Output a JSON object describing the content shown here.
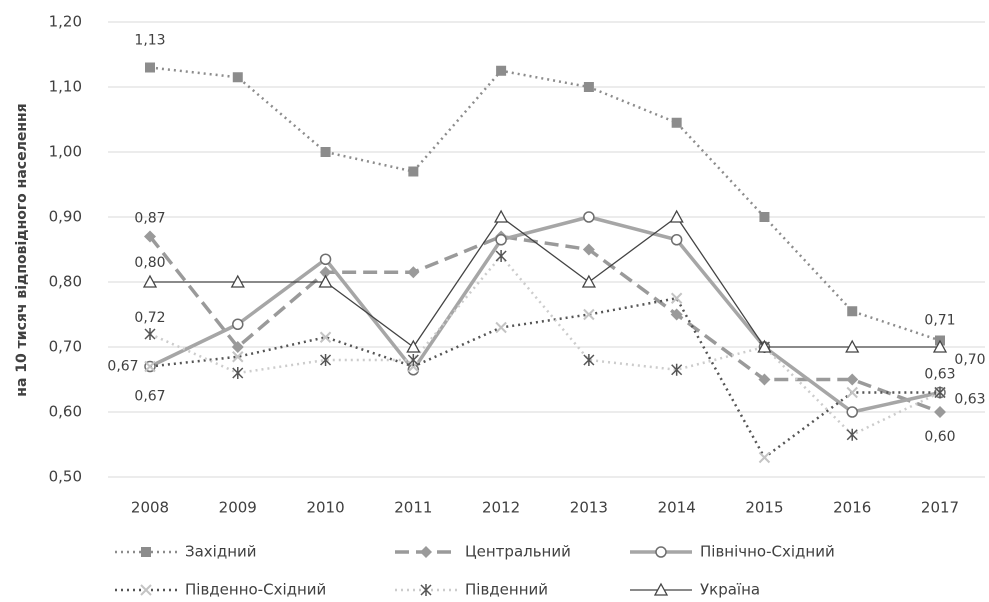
{
  "chart_data": {
    "type": "line",
    "y_label": "на 10 тисяч відповідного населення",
    "categories": [
      "2008",
      "2009",
      "2010",
      "2011",
      "2012",
      "2013",
      "2014",
      "2015",
      "2016",
      "2017"
    ],
    "ylim": [
      0.5,
      1.2
    ],
    "yticks": [
      {
        "value": 0.5,
        "label": "0,50"
      },
      {
        "value": 0.6,
        "label": "0,60"
      },
      {
        "value": 0.7,
        "label": "0,70"
      },
      {
        "value": 0.8,
        "label": "0,80"
      },
      {
        "value": 0.9,
        "label": "0,90"
      },
      {
        "value": 1.0,
        "label": "1,00"
      },
      {
        "value": 1.1,
        "label": "1,10"
      },
      {
        "value": 1.2,
        "label": "1,20"
      }
    ],
    "grid": true,
    "legend": "bottom",
    "series": [
      {
        "name": "Західний",
        "color": "#8c8c8c",
        "marker_color": "#8c8c8c",
        "line_style": "dotted",
        "marker": "square",
        "values": [
          1.13,
          1.115,
          1.0,
          0.97,
          1.125,
          1.1,
          1.045,
          0.9,
          0.755,
          0.71
        ],
        "value_labels": [
          "1,13",
          null,
          null,
          null,
          null,
          null,
          null,
          null,
          null,
          "0,71"
        ]
      },
      {
        "name": "Центральний",
        "color": "#9a9a9a",
        "marker_color": "#9a9a9a",
        "line_style": "dashed",
        "marker": "diamond",
        "values": [
          0.87,
          0.7,
          0.815,
          0.815,
          0.87,
          0.85,
          0.75,
          0.65,
          0.65,
          0.6
        ],
        "value_labels": [
          "0,87",
          null,
          null,
          null,
          null,
          null,
          null,
          null,
          null,
          "0,60"
        ]
      },
      {
        "name": "Північно-Східний",
        "color": "#a6a6a6",
        "marker_color": "#6e6e6e",
        "line_style": "solid",
        "marker": "circle",
        "values": [
          0.67,
          0.735,
          0.835,
          0.665,
          0.865,
          0.9,
          0.865,
          0.7,
          0.6,
          0.63
        ],
        "value_labels": [
          "0,67",
          null,
          null,
          null,
          null,
          null,
          null,
          null,
          null,
          "0,63"
        ]
      },
      {
        "name": "Південно-Східний",
        "color": "#555555",
        "marker_color": "#c4c4c4",
        "line_style": "dotted",
        "marker": "x",
        "values": [
          0.67,
          0.685,
          0.715,
          0.67,
          0.73,
          0.75,
          0.775,
          0.53,
          0.63,
          0.63
        ],
        "value_labels": [
          "0,67",
          null,
          null,
          null,
          null,
          null,
          null,
          null,
          null,
          null
        ]
      },
      {
        "name": "Південний",
        "color": "#cccccc",
        "marker_color": "#555555",
        "line_style": "dotted",
        "marker": "asterisk",
        "values": [
          0.72,
          0.66,
          0.68,
          0.68,
          0.84,
          0.68,
          0.665,
          0.7,
          0.565,
          0.63
        ],
        "value_labels": [
          "0,72",
          null,
          null,
          null,
          null,
          null,
          null,
          null,
          null,
          "0,63"
        ]
      },
      {
        "name": "Україна",
        "color": "#444444",
        "marker_color": "#444444",
        "line_style": "thin",
        "marker": "triangle",
        "values": [
          0.8,
          0.8,
          0.8,
          0.7,
          0.9,
          0.8,
          0.9,
          0.7,
          0.7,
          0.7
        ],
        "value_labels": [
          "0,80",
          null,
          null,
          null,
          null,
          null,
          null,
          null,
          null,
          "0,70"
        ]
      }
    ]
  }
}
